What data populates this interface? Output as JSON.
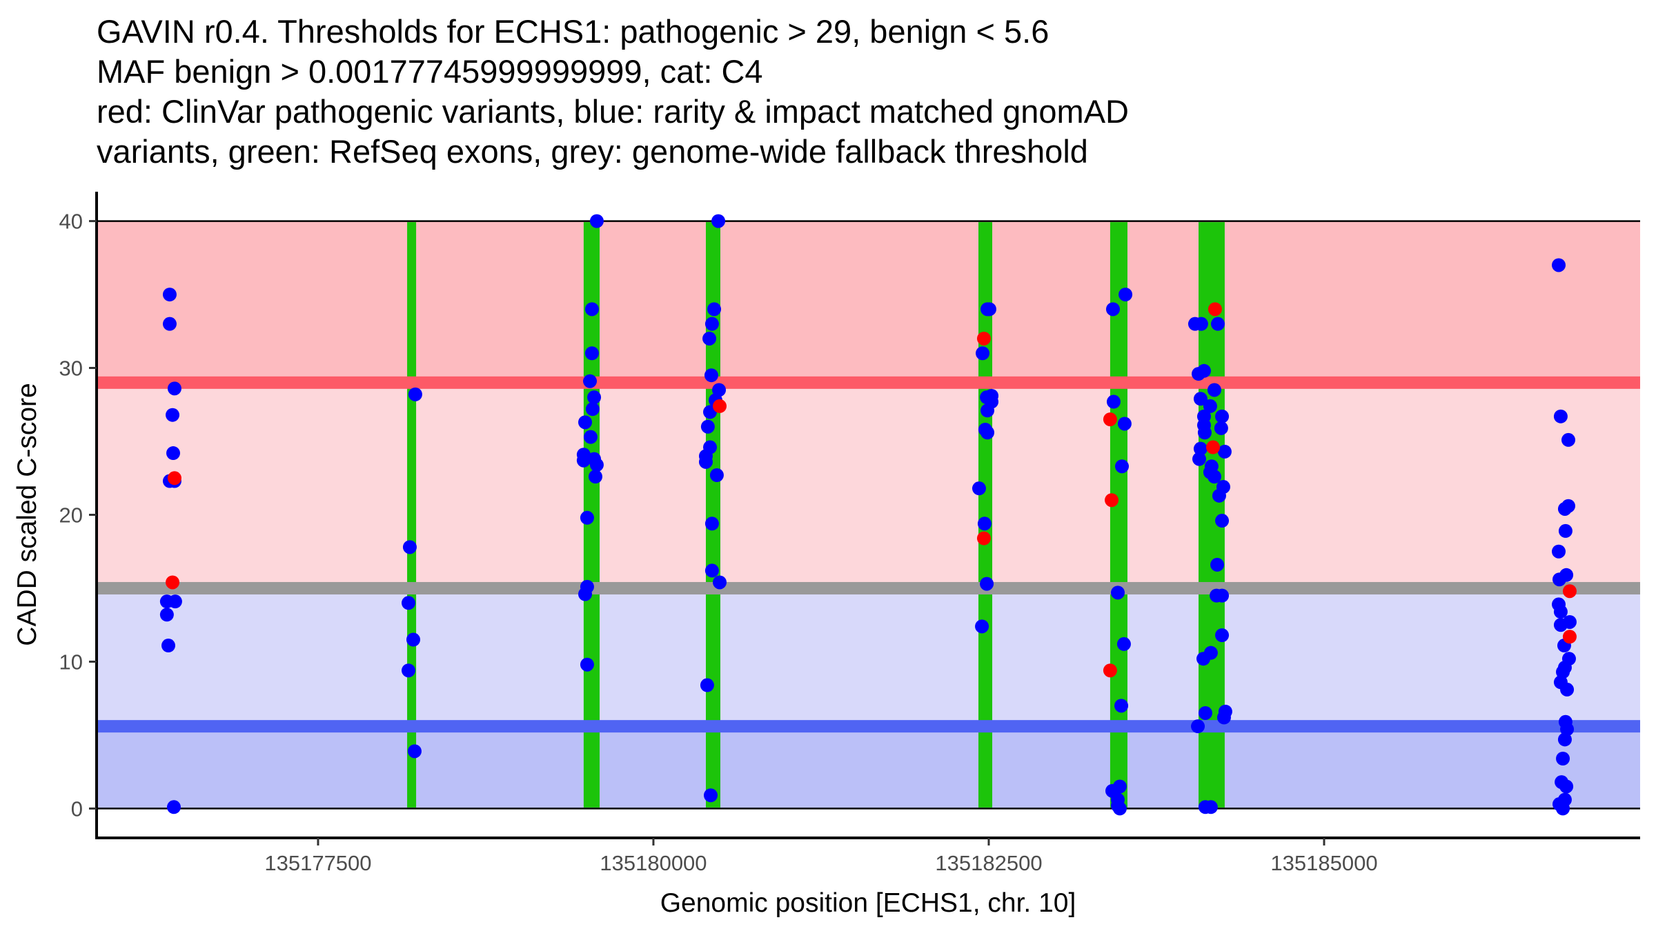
{
  "chart_data": {
    "type": "scatter",
    "title_lines": [
      "GAVIN r0.4. Thresholds for ECHS1: pathogenic > 29, benign < 5.6",
      "MAF benign > 0.00177745999999999, cat: C4",
      "red: ClinVar pathogenic variants, blue: rarity & impact matched gnomAD",
      "variants, green: RefSeq exons, grey: genome-wide fallback threshold"
    ],
    "xlabel": "Genomic position [ECHS1, chr. 10]",
    "ylabel": "CADD scaled C-score",
    "xlim": [
      135175849,
      135187356
    ],
    "ylim": [
      -2,
      42
    ],
    "x_ticks": [
      135177500,
      135180000,
      135182500,
      135185000
    ],
    "x_tick_labels": [
      "135177500",
      "135180000",
      "135182500",
      "135185000"
    ],
    "y_ticks": [
      0,
      10,
      20,
      30,
      40
    ],
    "y_tick_labels": [
      "0",
      "10",
      "20",
      "30",
      "40"
    ],
    "grid": false,
    "legend": "none (described in title)",
    "bands": [
      {
        "name": "pathogenic-zone",
        "y": [
          29,
          40
        ],
        "color": "#FDBBC0"
      },
      {
        "name": "pathogenic-lean-zone",
        "y": [
          15,
          29
        ],
        "color": "#FDD7DB"
      },
      {
        "name": "benign-lean-zone",
        "y": [
          5.6,
          15
        ],
        "color": "#D8D9FA"
      },
      {
        "name": "benign-zone",
        "y": [
          0,
          5.6
        ],
        "color": "#BBC0F8"
      }
    ],
    "thresholds": [
      {
        "name": "pathogenic-threshold",
        "label": "pathogenic > 29",
        "y": 29,
        "color": "#FD5A67"
      },
      {
        "name": "genome-wide-fallback-threshold",
        "label": "genome-wide fallback",
        "y": 15,
        "color": "#999999"
      },
      {
        "name": "benign-threshold",
        "label": "benign < 5.6",
        "y": 5.6,
        "color": "#5064F3"
      }
    ],
    "exons": {
      "name": "RefSeq exons",
      "color": "#1CC40A",
      "ranges": [
        [
          135178164,
          135178231
        ],
        [
          135179480,
          135179599
        ],
        [
          135180391,
          135180499
        ],
        [
          135182423,
          135182526
        ],
        [
          135183405,
          135183534
        ],
        [
          135184064,
          135184259
        ]
      ]
    },
    "series": [
      {
        "name": "gnomAD matched variants",
        "color": "#0000FF",
        "points": [
          [
            135176394,
            35.0
          ],
          [
            135176394,
            33.0
          ],
          [
            135176430,
            28.6
          ],
          [
            135176415,
            26.8
          ],
          [
            135176420,
            24.2
          ],
          [
            135176394,
            22.3
          ],
          [
            135176430,
            22.3
          ],
          [
            135176373,
            14.1
          ],
          [
            135176435,
            14.1
          ],
          [
            135176373,
            13.2
          ],
          [
            135176384,
            11.1
          ],
          [
            135176425,
            0.1
          ],
          [
            135178225,
            28.2
          ],
          [
            135178184,
            17.8
          ],
          [
            135178174,
            14.0
          ],
          [
            135178210,
            11.5
          ],
          [
            135178174,
            9.4
          ],
          [
            135178220,
            3.9
          ],
          [
            135179578,
            40.0
          ],
          [
            135179542,
            34.0
          ],
          [
            135179542,
            31.0
          ],
          [
            135179527,
            29.1
          ],
          [
            135179558,
            28.0
          ],
          [
            135179547,
            27.2
          ],
          [
            135179491,
            26.3
          ],
          [
            135179532,
            25.3
          ],
          [
            135179480,
            24.1
          ],
          [
            135179480,
            23.7
          ],
          [
            135179558,
            23.8
          ],
          [
            135179578,
            23.4
          ],
          [
            135179568,
            22.6
          ],
          [
            135179506,
            19.8
          ],
          [
            135179506,
            15.1
          ],
          [
            135179491,
            14.6
          ],
          [
            135179506,
            9.8
          ],
          [
            135180484,
            40.0
          ],
          [
            135180453,
            34.0
          ],
          [
            135180437,
            33.0
          ],
          [
            135180417,
            32.0
          ],
          [
            135180432,
            29.5
          ],
          [
            135180489,
            28.5
          ],
          [
            135180463,
            27.8
          ],
          [
            135180422,
            27.0
          ],
          [
            135180406,
            26.0
          ],
          [
            135180422,
            24.6
          ],
          [
            135180391,
            24.0
          ],
          [
            135180391,
            23.6
          ],
          [
            135180473,
            22.7
          ],
          [
            135180437,
            19.4
          ],
          [
            135180437,
            16.2
          ],
          [
            135180494,
            15.4
          ],
          [
            135180401,
            8.4
          ],
          [
            135180427,
            0.9
          ],
          [
            135182505,
            34.0
          ],
          [
            135182490,
            34.0
          ],
          [
            135182454,
            31.0
          ],
          [
            135182521,
            28.1
          ],
          [
            135182485,
            28.0
          ],
          [
            135182521,
            27.7
          ],
          [
            135182490,
            27.1
          ],
          [
            135182474,
            25.8
          ],
          [
            135182490,
            25.6
          ],
          [
            135182428,
            21.8
          ],
          [
            135182469,
            19.4
          ],
          [
            135182485,
            15.3
          ],
          [
            135182449,
            12.4
          ],
          [
            135183519,
            35.0
          ],
          [
            135183426,
            34.0
          ],
          [
            135183431,
            27.7
          ],
          [
            135183513,
            26.2
          ],
          [
            135183493,
            23.3
          ],
          [
            135183462,
            14.7
          ],
          [
            135183508,
            11.2
          ],
          [
            135183488,
            7.0
          ],
          [
            135183477,
            1.5
          ],
          [
            135183421,
            1.2
          ],
          [
            135183462,
            0.6
          ],
          [
            135183462,
            0.2
          ],
          [
            135183477,
            0.0
          ],
          [
            135184038,
            33.0
          ],
          [
            135184084,
            33.0
          ],
          [
            135184208,
            33.0
          ],
          [
            135184064,
            29.6
          ],
          [
            135184105,
            29.8
          ],
          [
            135184182,
            28.5
          ],
          [
            135184079,
            27.9
          ],
          [
            135184151,
            27.4
          ],
          [
            135184105,
            26.7
          ],
          [
            135184239,
            26.7
          ],
          [
            135184105,
            26.1
          ],
          [
            135184233,
            25.9
          ],
          [
            135184110,
            25.6
          ],
          [
            135184079,
            24.5
          ],
          [
            135184259,
            24.3
          ],
          [
            135184069,
            23.8
          ],
          [
            135184161,
            23.3
          ],
          [
            135184151,
            22.9
          ],
          [
            135184182,
            22.6
          ],
          [
            135184249,
            21.9
          ],
          [
            135184218,
            21.3
          ],
          [
            135184239,
            19.6
          ],
          [
            135184203,
            16.6
          ],
          [
            135184198,
            14.5
          ],
          [
            135184239,
            14.5
          ],
          [
            135184239,
            11.8
          ],
          [
            135184156,
            10.6
          ],
          [
            135184100,
            10.2
          ],
          [
            135184115,
            6.5
          ],
          [
            135184264,
            6.6
          ],
          [
            135184254,
            6.2
          ],
          [
            135184059,
            5.6
          ],
          [
            135184115,
            0.1
          ],
          [
            135184156,
            0.1
          ],
          [
            135186749,
            37.0
          ],
          [
            135186764,
            26.7
          ],
          [
            135186821,
            25.1
          ],
          [
            135186821,
            20.6
          ],
          [
            135186795,
            20.4
          ],
          [
            135186800,
            18.9
          ],
          [
            135186749,
            17.5
          ],
          [
            135186806,
            15.9
          ],
          [
            135186754,
            15.6
          ],
          [
            135186749,
            13.9
          ],
          [
            135186764,
            13.4
          ],
          [
            135186764,
            12.5
          ],
          [
            135186831,
            12.7
          ],
          [
            135186790,
            11.1
          ],
          [
            135186826,
            10.2
          ],
          [
            135186795,
            9.6
          ],
          [
            135186780,
            9.3
          ],
          [
            135186764,
            8.6
          ],
          [
            135186811,
            8.1
          ],
          [
            135186800,
            5.9
          ],
          [
            135186811,
            5.4
          ],
          [
            135186795,
            4.7
          ],
          [
            135186780,
            3.4
          ],
          [
            135186770,
            1.8
          ],
          [
            135186806,
            1.5
          ],
          [
            135186754,
            0.3
          ],
          [
            135186795,
            0.6
          ],
          [
            135186780,
            0.0
          ]
        ]
      },
      {
        "name": "ClinVar pathogenic variants",
        "color": "#FF0000",
        "points": [
          [
            135176430,
            22.5
          ],
          [
            135176415,
            15.4
          ],
          [
            135180494,
            27.4
          ],
          [
            135182464,
            32.0
          ],
          [
            135182464,
            18.4
          ],
          [
            135183405,
            26.5
          ],
          [
            135183416,
            21.0
          ],
          [
            135183405,
            9.4
          ],
          [
            135184187,
            34.0
          ],
          [
            135184172,
            24.6
          ],
          [
            135186831,
            14.8
          ],
          [
            135186831,
            11.7
          ]
        ]
      }
    ]
  },
  "style": {
    "background": "#FFFFFF",
    "axis_color": "#000000",
    "tick_label_color": "#4D4D4D",
    "exon_color": "#1CC40A"
  }
}
